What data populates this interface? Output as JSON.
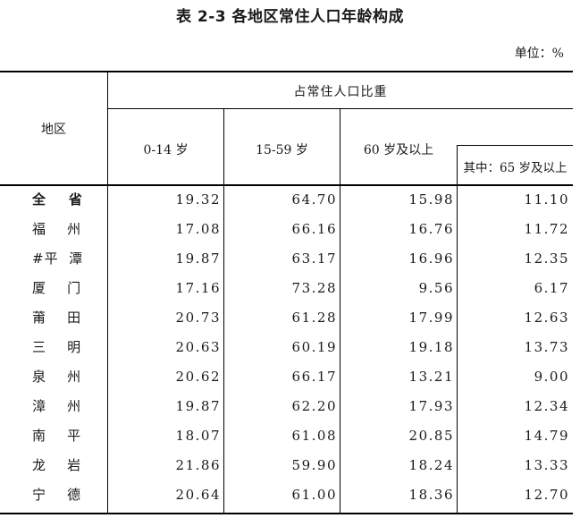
{
  "title": "表 2-3  各地区常住人口年龄构成",
  "unit": "单位：%",
  "header": {
    "region": "地区",
    "group": "占常住人口比重",
    "col1": "0-14 岁",
    "col2": "15-59 岁",
    "col3": "60 岁及以上",
    "col4": "其中：65 岁及以上"
  },
  "rows": [
    {
      "region": "全    省",
      "v1": "19.32",
      "v2": "64.70",
      "v3": "15.98",
      "v4": "11.10"
    },
    {
      "region": "福    州",
      "v1": "17.08",
      "v2": "66.16",
      "v3": "16.76",
      "v4": "11.72"
    },
    {
      "region": "#平  潭",
      "v1": "19.87",
      "v2": "63.17",
      "v3": "16.96",
      "v4": "12.35"
    },
    {
      "region": "厦    门",
      "v1": "17.16",
      "v2": "73.28",
      "v3": "9.56",
      "v4": "6.17"
    },
    {
      "region": "莆    田",
      "v1": "20.73",
      "v2": "61.28",
      "v3": "17.99",
      "v4": "12.63"
    },
    {
      "region": "三    明",
      "v1": "20.63",
      "v2": "60.19",
      "v3": "19.18",
      "v4": "13.73"
    },
    {
      "region": "泉    州",
      "v1": "20.62",
      "v2": "66.17",
      "v3": "13.21",
      "v4": "9.00"
    },
    {
      "region": "漳    州",
      "v1": "19.87",
      "v2": "62.20",
      "v3": "17.93",
      "v4": "12.34"
    },
    {
      "region": "南    平",
      "v1": "18.07",
      "v2": "61.08",
      "v3": "20.85",
      "v4": "14.79"
    },
    {
      "region": "龙    岩",
      "v1": "21.86",
      "v2": "59.90",
      "v3": "18.24",
      "v4": "13.33"
    },
    {
      "region": "宁    德",
      "v1": "20.64",
      "v2": "61.00",
      "v3": "18.36",
      "v4": "12.70"
    }
  ]
}
